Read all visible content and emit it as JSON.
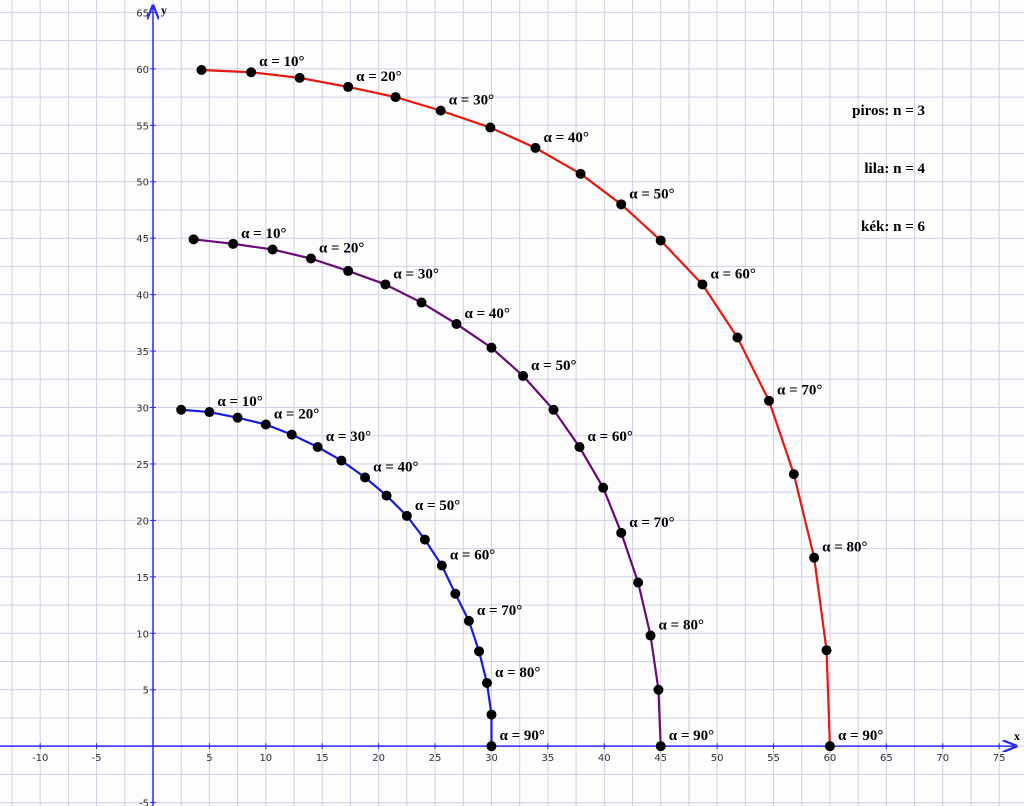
{
  "chart_data": {
    "type": "line",
    "xlabel": "x",
    "ylabel": "y",
    "xlim": [
      -13.56,
      77.2
    ],
    "ylim": [
      -5.3,
      66.1
    ],
    "xticks": [
      -10,
      -5,
      5,
      10,
      15,
      20,
      25,
      30,
      35,
      40,
      45,
      50,
      55,
      60,
      65,
      70,
      75
    ],
    "yticks": [
      -5,
      5,
      10,
      15,
      20,
      25,
      30,
      35,
      40,
      45,
      50,
      55,
      60,
      65
    ],
    "grid": true,
    "minor_grid_step": 2.5,
    "legend": "upper right",
    "series": [
      {
        "name": "piros: n = 3",
        "color": "#e8170f",
        "x": [
          4.3,
          8.7,
          13,
          17.3,
          21.5,
          25.5,
          29.9,
          33.9,
          37.9,
          41.5,
          45,
          48.7,
          51.8,
          54.6,
          56.8,
          58.6,
          59.7,
          60
        ],
        "y": [
          59.9,
          59.7,
          59.2,
          58.4,
          57.5,
          56.3,
          54.8,
          53,
          50.7,
          48,
          44.8,
          40.9,
          36.2,
          30.6,
          24.1,
          16.7,
          8.5,
          0
        ],
        "labels": [
          "α = 10°",
          "α = 20°",
          "α = 30°",
          "α = 40°",
          "α = 50°",
          "α = 60°",
          "α = 70°",
          "α = 80°",
          "α = 90°"
        ]
      },
      {
        "name": "lila: n = 4",
        "color": "#6a0a78",
        "x": [
          3.6,
          7.1,
          10.6,
          14,
          17.3,
          20.6,
          23.8,
          26.9,
          30,
          32.8,
          35.5,
          37.8,
          39.9,
          41.5,
          43,
          44.1,
          44.8,
          45
        ],
        "y": [
          44.9,
          44.5,
          44,
          43.2,
          42.1,
          40.9,
          39.3,
          37.4,
          35.3,
          32.8,
          29.8,
          26.5,
          22.9,
          18.9,
          14.5,
          9.8,
          5,
          0
        ],
        "labels": [
          "α = 10°",
          "α = 20°",
          "α = 30°",
          "α = 40°",
          "α = 50°",
          "α = 60°",
          "α = 70°",
          "α = 80°",
          "α = 90°"
        ]
      },
      {
        "name": "kék: n = 6",
        "color": "#1a1ae0",
        "x": [
          2.5,
          5,
          7.5,
          10,
          12.3,
          14.6,
          16.7,
          18.8,
          20.7,
          22.5,
          24.1,
          25.6,
          26.8,
          28,
          28.9,
          29.6,
          30,
          30
        ],
        "y": [
          29.8,
          29.6,
          29.1,
          28.5,
          27.6,
          26.5,
          25.3,
          23.8,
          22.2,
          20.4,
          18.3,
          16,
          13.5,
          11.1,
          8.4,
          5.6,
          2.8,
          0
        ],
        "labels": [
          "α = 10°",
          "α = 20°",
          "α = 30°",
          "α = 40°",
          "α = 50°",
          "α = 60°",
          "α = 70°",
          "α = 80°",
          "α = 90°"
        ]
      }
    ]
  }
}
